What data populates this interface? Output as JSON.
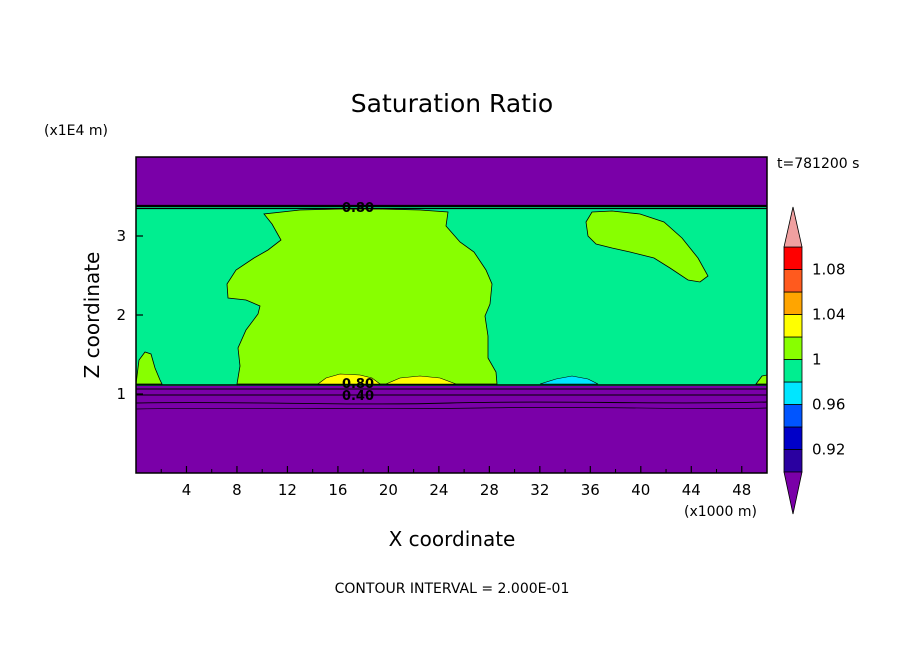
{
  "chart_data": {
    "type": "heatmap",
    "subtype": "filled-contour",
    "title": "Saturation Ratio",
    "xlabel": "X coordinate",
    "ylabel": "Z coordinate",
    "x_unit": "(x1000 m)",
    "y_unit": "(x1E4 m)",
    "time_label": "t=781200 s",
    "footer": "CONTOUR INTERVAL = 2.000E-01",
    "xlim": [
      0,
      50
    ],
    "ylim": [
      0,
      4
    ],
    "x_ticks": [
      "4",
      "8",
      "12",
      "16",
      "20",
      "24",
      "28",
      "32",
      "36",
      "40",
      "44",
      "48"
    ],
    "y_ticks": [
      "1",
      "2",
      "3"
    ],
    "grid": false,
    "colorbar": {
      "position": "right",
      "levels": [
        0.9,
        0.92,
        0.94,
        0.96,
        0.98,
        1.0,
        1.02,
        1.04,
        1.06,
        1.08,
        1.1
      ],
      "labels": [
        "0.92",
        "0.96",
        "1",
        "1.04",
        "1.08"
      ],
      "colors": [
        "#7a00a8",
        "#2a00a0",
        "#0000c8",
        "#0055ff",
        "#00e6ff",
        "#00ee90",
        "#88ff00",
        "#ffff00",
        "#ffa500",
        "#ff5a1e",
        "#ff0000",
        "#f0a0a0"
      ]
    },
    "contour_labels": [
      "0.80",
      "0.80",
      "0.40"
    ],
    "regions": [
      {
        "value": "below 0.90",
        "z_range": [
          0,
          1.1
        ]
      },
      {
        "value": "0.98-1.00",
        "z_range": [
          1.1,
          3.35
        ]
      },
      {
        "value": "1.00-1.02",
        "x_range": [
          11,
          28
        ],
        "z_range": [
          1.1,
          3.35
        ]
      },
      {
        "value": "1.00-1.02",
        "x_range": [
          36,
          46
        ],
        "z_range": [
          2.45,
          3.3
        ]
      },
      {
        "value": "1.02-1.04",
        "x_range": [
          14,
          26
        ],
        "z_range": [
          1.1,
          1.22
        ]
      },
      {
        "value": "0.96-0.98",
        "x_range": [
          33,
          37
        ],
        "z_range": [
          1.1,
          1.2
        ]
      },
      {
        "value": "below 0.90",
        "z_range": [
          3.35,
          4.0
        ]
      }
    ]
  }
}
